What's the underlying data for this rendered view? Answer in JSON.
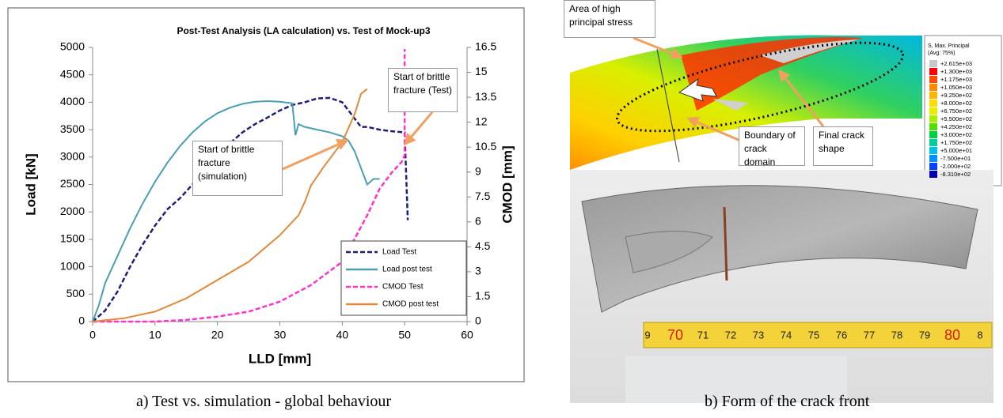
{
  "chart_data": {
    "type": "line",
    "title": "Post-Test Analysis (LA calculation) vs. Test of Mock-up3",
    "xlabel": "LLD [mm]",
    "ylabel": "Load [kN]",
    "y2label": "CMOD [mm]",
    "xlim": [
      0,
      60
    ],
    "xticks": [
      0,
      10,
      20,
      30,
      40,
      50,
      60
    ],
    "ylim": [
      0,
      5000
    ],
    "yticks": [
      0,
      500,
      1000,
      1500,
      2000,
      2500,
      3000,
      3500,
      4000,
      4500,
      5000
    ],
    "y2lim": [
      0,
      16.5
    ],
    "y2ticks": [
      0,
      1.5,
      3,
      4.5,
      6,
      7.5,
      9,
      10.5,
      12,
      13.5,
      15,
      16.5
    ],
    "grid": false,
    "legend": "lower right",
    "series": [
      {
        "name": "Load Test",
        "color": "#1f1f78",
        "linestyle": "dashed",
        "x": [
          0,
          2,
          4,
          6,
          8,
          10,
          12,
          14,
          16,
          18,
          20,
          22,
          24,
          26,
          28,
          30,
          32,
          34,
          36,
          38,
          40,
          42,
          43,
          44,
          46,
          48,
          50,
          50.5
        ],
        "values": [
          0,
          200,
          550,
          1000,
          1400,
          1750,
          2050,
          2250,
          2500,
          2800,
          3050,
          3250,
          3450,
          3600,
          3720,
          3850,
          3950,
          4000,
          4070,
          4080,
          4000,
          3700,
          3550,
          3550,
          3500,
          3470,
          3450,
          1850
        ]
      },
      {
        "name": "Load post test",
        "color": "#4a9fb0",
        "linestyle": "solid",
        "x": [
          0,
          1,
          2,
          4,
          6,
          8,
          10,
          12,
          14,
          16,
          18,
          20,
          22,
          24,
          26,
          28,
          30,
          32,
          32.5,
          33,
          34,
          36,
          38,
          40,
          41,
          42,
          43,
          44,
          45,
          46
        ],
        "values": [
          0,
          300,
          700,
          1200,
          1700,
          2150,
          2550,
          2900,
          3200,
          3450,
          3650,
          3800,
          3900,
          3970,
          4010,
          4020,
          4010,
          3980,
          3400,
          3600,
          3550,
          3500,
          3450,
          3380,
          3300,
          3100,
          2800,
          2500,
          2600,
          2600
        ]
      },
      {
        "name": "CMOD Test",
        "color": "#ff33cc",
        "linestyle": "dashed",
        "axis": "y2",
        "x": [
          0,
          10,
          15,
          20,
          25,
          30,
          35,
          40,
          44,
          46,
          48,
          49.5,
          50,
          50
        ],
        "values": [
          0,
          0,
          0.1,
          0.3,
          0.6,
          1.2,
          2.2,
          3.6,
          6.4,
          8.0,
          9.0,
          9.6,
          10.0,
          16.4
        ]
      },
      {
        "name": "CMOD post test",
        "color": "#e08a3a",
        "linestyle": "solid",
        "axis": "y2",
        "x": [
          0,
          5,
          10,
          15,
          20,
          25,
          30,
          33,
          34,
          35,
          37,
          40,
          42,
          43,
          44
        ],
        "values": [
          0,
          0.2,
          0.6,
          1.4,
          2.5,
          3.6,
          5.2,
          6.4,
          7.2,
          8.2,
          9.3,
          10.8,
          12.5,
          13.7,
          14.0
        ]
      }
    ],
    "annotations": [
      "Start of brittle fracture (Test)",
      "Start of brittle fracture (simulation)"
    ]
  },
  "captions": [
    "a) Test vs. simulation - global behaviour",
    "b) Form of the crack front"
  ],
  "contour": {
    "callouts": [
      "Area of high principal stress",
      "Boundary of crack domain",
      "Final crack shape"
    ],
    "legend_title": [
      "S, Max. Principal",
      "(Avg: 75%)"
    ],
    "legend_values": [
      "+2.615e+03",
      "+1.300e+03",
      "+1.175e+03",
      "+1.050e+03",
      "+9.250e+02",
      "+8.000e+02",
      "+6.750e+02",
      "+5.500e+02",
      "+4.250e+02",
      "+3.000e+02",
      "+1.750e+02",
      "+5.000e+01",
      "-7.500e+01",
      "-2.000e+02",
      "-8.310e+02"
    ],
    "legend_colors": [
      "#c8c8c8",
      "#ff0000",
      "#ff4a00",
      "#ff8a00",
      "#ffb400",
      "#ffdc00",
      "#e4f000",
      "#a8f000",
      "#50e000",
      "#00d040",
      "#00d0a0",
      "#00c0e8",
      "#0090ff",
      "#0040ff",
      "#0000b0"
    ]
  },
  "ruler": [
    "9",
    "70",
    "71",
    "72",
    "73",
    "74",
    "75",
    "76",
    "77",
    "78",
    "79",
    "80",
    "8"
  ]
}
